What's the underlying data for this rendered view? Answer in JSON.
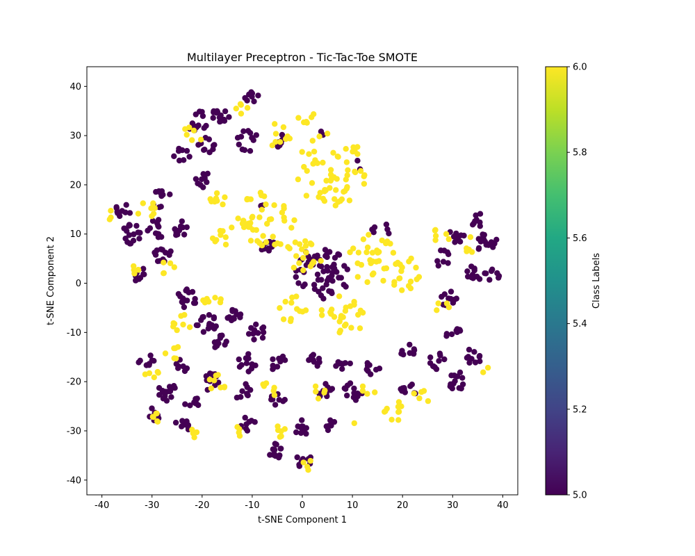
{
  "chart_data": {
    "type": "scatter",
    "title": "Multilayer Preceptron - Tic-Tac-Toe SMOTE",
    "xlabel": "t-SNE Component 1",
    "ylabel": "t-SNE Component 2",
    "xlim": [
      -43,
      43
    ],
    "ylim": [
      -43,
      44
    ],
    "xticks": [
      -40,
      -30,
      -20,
      -10,
      0,
      10,
      20,
      30,
      40
    ],
    "yticks": [
      -40,
      -30,
      -20,
      -10,
      0,
      10,
      20,
      30,
      40
    ],
    "grid": false,
    "colormap": "viridis",
    "colorbar": {
      "label": "Class Labels",
      "range": [
        5.0,
        6.0
      ],
      "ticks": [
        "5.0",
        "5.2",
        "5.4",
        "5.6",
        "5.8",
        "6.0"
      ]
    },
    "series": [
      {
        "class_value": 5.0,
        "color": "#440154",
        "clusters": [
          {
            "center": [
              -21,
              33
            ],
            "spread": 2.2,
            "count": 14
          },
          {
            "center": [
              -16,
              34
            ],
            "spread": 2.0,
            "count": 16
          },
          {
            "center": [
              -10,
              38
            ],
            "spread": 1.6,
            "count": 8
          },
          {
            "center": [
              -19,
              28
            ],
            "spread": 1.8,
            "count": 10
          },
          {
            "center": [
              -11,
              29
            ],
            "spread": 2.2,
            "count": 12
          },
          {
            "center": [
              -4,
              29
            ],
            "spread": 1.6,
            "count": 8
          },
          {
            "center": [
              -24,
              26
            ],
            "spread": 1.8,
            "count": 8
          },
          {
            "center": [
              -20,
              21
            ],
            "spread": 1.8,
            "count": 10
          },
          {
            "center": [
              -28,
              17
            ],
            "spread": 2.0,
            "count": 10
          },
          {
            "center": [
              -36,
              15
            ],
            "spread": 1.8,
            "count": 10
          },
          {
            "center": [
              -34,
              10
            ],
            "spread": 2.0,
            "count": 16
          },
          {
            "center": [
              -29,
              11
            ],
            "spread": 2.0,
            "count": 12
          },
          {
            "center": [
              -24,
              11
            ],
            "spread": 1.8,
            "count": 10
          },
          {
            "center": [
              -28,
              6
            ],
            "spread": 1.8,
            "count": 12
          },
          {
            "center": [
              -33,
              2
            ],
            "spread": 1.6,
            "count": 8
          },
          {
            "center": [
              -7,
              8
            ],
            "spread": 1.6,
            "count": 10
          },
          {
            "center": [
              4,
              2
            ],
            "spread": 5.5,
            "count": 60
          },
          {
            "center": [
              31,
              10
            ],
            "spread": 1.8,
            "count": 10
          },
          {
            "center": [
              37,
              8
            ],
            "spread": 2.2,
            "count": 16
          },
          {
            "center": [
              35,
              13
            ],
            "spread": 1.6,
            "count": 8
          },
          {
            "center": [
              28,
              5
            ],
            "spread": 1.8,
            "count": 8
          },
          {
            "center": [
              34,
              2
            ],
            "spread": 1.8,
            "count": 10
          },
          {
            "center": [
              38,
              2
            ],
            "spread": 1.6,
            "count": 8
          },
          {
            "center": [
              29,
              -3
            ],
            "spread": 1.8,
            "count": 10
          },
          {
            "center": [
              -23,
              -3
            ],
            "spread": 2.0,
            "count": 14
          },
          {
            "center": [
              -19,
              -8
            ],
            "spread": 2.2,
            "count": 16
          },
          {
            "center": [
              -14,
              -6
            ],
            "spread": 2.0,
            "count": 12
          },
          {
            "center": [
              -9,
              -10
            ],
            "spread": 1.8,
            "count": 12
          },
          {
            "center": [
              -16,
              -12
            ],
            "spread": 1.8,
            "count": 10
          },
          {
            "center": [
              30,
              -10
            ],
            "spread": 1.6,
            "count": 8
          },
          {
            "center": [
              -31,
              -16
            ],
            "spread": 1.8,
            "count": 8
          },
          {
            "center": [
              -27,
              -22
            ],
            "spread": 2.0,
            "count": 16
          },
          {
            "center": [
              -24,
              -17
            ],
            "spread": 1.6,
            "count": 8
          },
          {
            "center": [
              -18,
              -20
            ],
            "spread": 2.0,
            "count": 12
          },
          {
            "center": [
              -11,
              -16
            ],
            "spread": 2.0,
            "count": 12
          },
          {
            "center": [
              -5,
              -16
            ],
            "spread": 1.8,
            "count": 10
          },
          {
            "center": [
              2,
              -16
            ],
            "spread": 1.6,
            "count": 8
          },
          {
            "center": [
              8,
              -16
            ],
            "spread": 1.6,
            "count": 8
          },
          {
            "center": [
              14,
              -17
            ],
            "spread": 1.6,
            "count": 8
          },
          {
            "center": [
              21,
              -14
            ],
            "spread": 1.6,
            "count": 8
          },
          {
            "center": [
              27,
              -16
            ],
            "spread": 1.8,
            "count": 10
          },
          {
            "center": [
              34,
              -15
            ],
            "spread": 1.8,
            "count": 10
          },
          {
            "center": [
              31,
              -20
            ],
            "spread": 2.0,
            "count": 14
          },
          {
            "center": [
              -12,
              -22
            ],
            "spread": 1.8,
            "count": 10
          },
          {
            "center": [
              -5,
              -24
            ],
            "spread": 1.6,
            "count": 8
          },
          {
            "center": [
              5,
              -22
            ],
            "spread": 1.8,
            "count": 10
          },
          {
            "center": [
              10,
              -22
            ],
            "spread": 2.0,
            "count": 14
          },
          {
            "center": [
              21,
              -22
            ],
            "spread": 1.8,
            "count": 10
          },
          {
            "center": [
              -22,
              -24
            ],
            "spread": 1.6,
            "count": 8
          },
          {
            "center": [
              -30,
              -27
            ],
            "spread": 1.6,
            "count": 8
          },
          {
            "center": [
              -24,
              -29
            ],
            "spread": 1.6,
            "count": 8
          },
          {
            "center": [
              -11,
              -29
            ],
            "spread": 1.8,
            "count": 10
          },
          {
            "center": [
              0,
              -29
            ],
            "spread": 1.8,
            "count": 10
          },
          {
            "center": [
              6,
              -29
            ],
            "spread": 1.4,
            "count": 6
          },
          {
            "center": [
              -6,
              -34
            ],
            "spread": 2.0,
            "count": 14
          },
          {
            "center": [
              0,
              -36
            ],
            "spread": 1.8,
            "count": 10
          },
          {
            "center": [
              16,
              10
            ],
            "spread": 3.0,
            "count": 6
          },
          {
            "center": [
              -8,
              16
            ],
            "spread": 1.0,
            "count": 2
          },
          {
            "center": [
              11,
              24
            ],
            "spread": 1.0,
            "count": 2
          },
          {
            "center": [
              4,
              30
            ],
            "spread": 1.0,
            "count": 2
          }
        ]
      },
      {
        "class_value": 6.0,
        "color": "#fde725",
        "clusters": [
          {
            "center": [
              6,
              23
            ],
            "spread": 7.5,
            "count": 60
          },
          {
            "center": [
              -7,
              13
            ],
            "spread": 6.0,
            "count": 40
          },
          {
            "center": [
              0,
              5
            ],
            "spread": 4.0,
            "count": 20
          },
          {
            "center": [
              14,
              5
            ],
            "spread": 5.0,
            "count": 30
          },
          {
            "center": [
              20,
              2
            ],
            "spread": 3.5,
            "count": 18
          },
          {
            "center": [
              8,
              -7
            ],
            "spread": 4.5,
            "count": 25
          },
          {
            "center": [
              -2,
              -5
            ],
            "spread": 3.0,
            "count": 12
          },
          {
            "center": [
              -5,
              30
            ],
            "spread": 2.5,
            "count": 8
          },
          {
            "center": [
              1,
              33
            ],
            "spread": 2.0,
            "count": 6
          },
          {
            "center": [
              -12,
              36
            ],
            "spread": 1.6,
            "count": 5
          },
          {
            "center": [
              -17,
              17
            ],
            "spread": 1.6,
            "count": 8
          },
          {
            "center": [
              -16,
              9
            ],
            "spread": 2.0,
            "count": 8
          },
          {
            "center": [
              -13,
              12
            ],
            "spread": 2.0,
            "count": 6
          },
          {
            "center": [
              -22,
              30
            ],
            "spread": 2.0,
            "count": 6
          },
          {
            "center": [
              -18,
              -3
            ],
            "spread": 2.0,
            "count": 8
          },
          {
            "center": [
              -24,
              -8
            ],
            "spread": 2.0,
            "count": 8
          },
          {
            "center": [
              -26,
              -14
            ],
            "spread": 1.8,
            "count": 6
          },
          {
            "center": [
              -17,
              -20
            ],
            "spread": 2.0,
            "count": 8
          },
          {
            "center": [
              -7,
              -22
            ],
            "spread": 1.8,
            "count": 6
          },
          {
            "center": [
              3,
              -22
            ],
            "spread": 1.6,
            "count": 5
          },
          {
            "center": [
              -4,
              -30
            ],
            "spread": 1.8,
            "count": 6
          },
          {
            "center": [
              18,
              -26
            ],
            "spread": 2.5,
            "count": 10
          },
          {
            "center": [
              24,
              -23
            ],
            "spread": 1.8,
            "count": 5
          },
          {
            "center": [
              -31,
              15
            ],
            "spread": 2.0,
            "count": 8
          },
          {
            "center": [
              -34,
              2
            ],
            "spread": 1.6,
            "count": 5
          },
          {
            "center": [
              -27,
              3
            ],
            "spread": 1.8,
            "count": 5
          },
          {
            "center": [
              -39,
              14
            ],
            "spread": 1.2,
            "count": 3
          },
          {
            "center": [
              28,
              10
            ],
            "spread": 2.0,
            "count": 6
          },
          {
            "center": [
              33,
              8
            ],
            "spread": 2.0,
            "count": 5
          },
          {
            "center": [
              28,
              -5
            ],
            "spread": 1.6,
            "count": 4
          },
          {
            "center": [
              -29,
              -27
            ],
            "spread": 1.8,
            "count": 6
          },
          {
            "center": [
              -22,
              -31
            ],
            "spread": 1.6,
            "count": 4
          },
          {
            "center": [
              -13,
              -30
            ],
            "spread": 1.6,
            "count": 4
          },
          {
            "center": [
              1,
              -37
            ],
            "spread": 1.4,
            "count": 4
          },
          {
            "center": [
              13,
              -22
            ],
            "spread": 1.6,
            "count": 4
          },
          {
            "center": [
              -30,
              -19
            ],
            "spread": 1.6,
            "count": 5
          },
          {
            "center": [
              -3,
              30
            ],
            "spread": 1.0,
            "count": 2
          },
          {
            "center": [
              36,
              -17
            ],
            "spread": 1.2,
            "count": 2
          },
          {
            "center": [
              10,
              -29
            ],
            "spread": 0.8,
            "count": 1
          }
        ]
      }
    ]
  }
}
